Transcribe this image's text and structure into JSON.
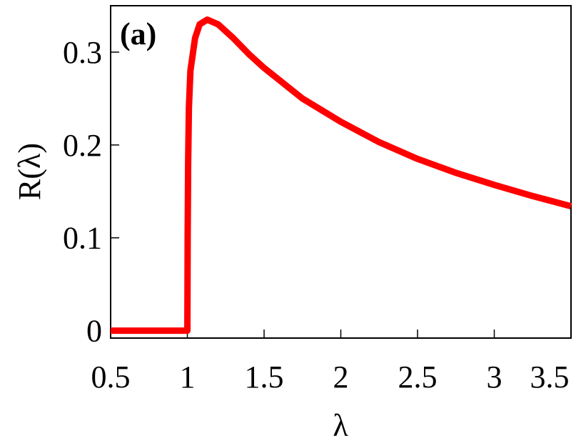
{
  "chart_data": {
    "type": "line",
    "annotation": "(a)",
    "x_label": "λ",
    "y_label": "R(λ)",
    "x": [
      0.5,
      0.9,
      0.99,
      1.0,
      1.002,
      1.005,
      1.01,
      1.02,
      1.05,
      1.08,
      1.13,
      1.2,
      1.3,
      1.4,
      1.5,
      1.75,
      2,
      2.25,
      2.5,
      2.75,
      3,
      3.25,
      3.5
    ],
    "series": [
      {
        "color": "#ff0000",
        "values": [
          0,
          0,
          0,
          0,
          0.1,
          0.18,
          0.24,
          0.28,
          0.315,
          0.33,
          0.335,
          0.33,
          0.315,
          0.298,
          0.283,
          0.25,
          0.225,
          0.203,
          0.185,
          0.17,
          0.157,
          0.145,
          0.134
        ]
      }
    ],
    "xlim": [
      0.5,
      3.5
    ],
    "ylim": [
      -0.008,
      0.35
    ],
    "xticks": [
      0.5,
      1,
      1.5,
      2,
      2.5,
      3,
      3.5
    ],
    "yticks": [
      0,
      0.1,
      0.2,
      0.3
    ]
  }
}
